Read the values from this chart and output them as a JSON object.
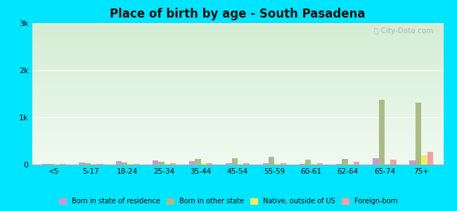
{
  "title": "Place of birth by age - South Pasadena",
  "categories": [
    "<5",
    "5-17",
    "18-24",
    "25-34",
    "35-44",
    "45-54",
    "55-59",
    "60-61",
    "62-64",
    "65-74",
    "75+"
  ],
  "series": {
    "Born in state of residence": [
      10,
      50,
      80,
      90,
      80,
      30,
      30,
      20,
      10,
      130,
      90
    ],
    "Born in other state": [
      10,
      30,
      40,
      60,
      120,
      130,
      170,
      100,
      120,
      1380,
      1320
    ],
    "Native, outside of US": [
      5,
      10,
      10,
      15,
      30,
      15,
      10,
      10,
      10,
      20,
      190
    ],
    "Foreign-born": [
      10,
      20,
      20,
      30,
      30,
      35,
      30,
      30,
      60,
      110,
      270
    ]
  },
  "colors": {
    "Born in state of residence": "#cc99cc",
    "Born in other state": "#aabb88",
    "Native, outside of US": "#eeee66",
    "Foreign-born": "#f4a0a0"
  },
  "ylim": [
    0,
    3000
  ],
  "yticks": [
    0,
    1000,
    2000,
    3000
  ],
  "ytick_labels": [
    "0",
    "1k",
    "2k",
    "3k"
  ],
  "bg_gradient_top": "#d4edd4",
  "bg_gradient_bottom": "#f0faf0",
  "outer_bg": "#00e5ff",
  "bar_width": 0.16,
  "watermark": "City-Data.com",
  "legend_order": [
    "Born in state of residence",
    "Born in other state",
    "Native, outside of US",
    "Foreign-born"
  ]
}
